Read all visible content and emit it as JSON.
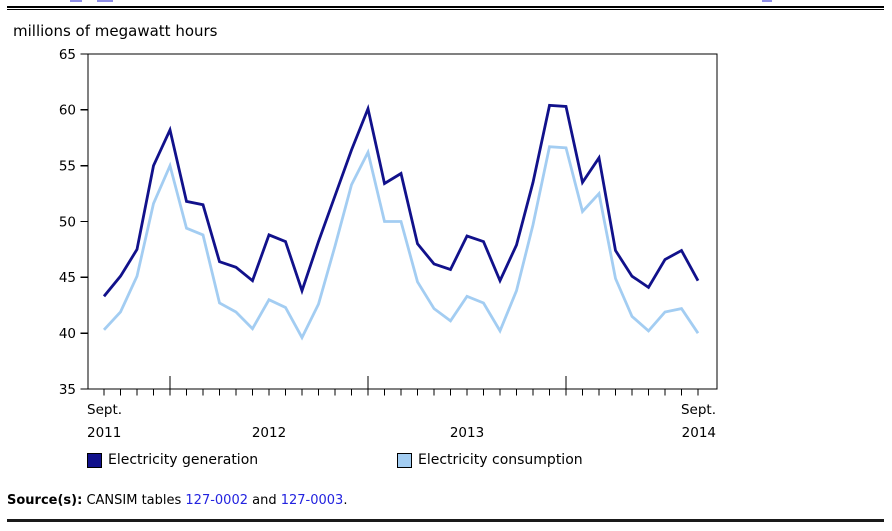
{
  "header": {
    "unit_label": "millions of megawatt hours"
  },
  "chart_data": {
    "type": "line",
    "title": "millions of megawatt hours",
    "ylabel": "millions of megawatt hours",
    "ylim": [
      35,
      65
    ],
    "yticks": [
      35,
      40,
      45,
      50,
      55,
      60,
      65
    ],
    "grid": false,
    "legend_position": "bottom",
    "x_months": [
      "2011-09",
      "2011-10",
      "2011-11",
      "2011-12",
      "2012-01",
      "2012-02",
      "2012-03",
      "2012-04",
      "2012-05",
      "2012-06",
      "2012-07",
      "2012-08",
      "2012-09",
      "2012-10",
      "2012-11",
      "2012-12",
      "2013-01",
      "2013-02",
      "2013-03",
      "2013-04",
      "2013-05",
      "2013-06",
      "2013-07",
      "2013-08",
      "2013-09",
      "2013-10",
      "2013-11",
      "2013-12",
      "2014-01",
      "2014-02",
      "2014-03",
      "2014-04",
      "2014-05",
      "2014-06",
      "2014-07",
      "2014-08",
      "2014-09"
    ],
    "series": [
      {
        "name": "Electricity generation",
        "color": "#11118B",
        "values": [
          43.3,
          45.1,
          47.5,
          55.0,
          58.2,
          51.8,
          51.5,
          46.4,
          45.9,
          44.7,
          48.8,
          48.2,
          43.8,
          48.2,
          52.3,
          56.4,
          60.1,
          53.4,
          54.3,
          48.0,
          46.2,
          45.7,
          48.7,
          48.2,
          44.7,
          47.9,
          53.5,
          60.4,
          60.3,
          53.5,
          55.7,
          47.4,
          45.1,
          44.1,
          46.6,
          47.4,
          44.7
        ]
      },
      {
        "name": "Electricity consumption",
        "color": "#A3CDF2",
        "values": [
          40.3,
          41.9,
          45.1,
          51.6,
          55.0,
          49.4,
          48.8,
          42.7,
          41.9,
          40.4,
          43.0,
          42.3,
          39.6,
          42.6,
          47.8,
          53.3,
          56.2,
          50.0,
          50.0,
          44.6,
          42.2,
          41.1,
          43.3,
          42.7,
          40.2,
          43.8,
          49.7,
          56.7,
          56.6,
          50.9,
          52.5,
          44.9,
          41.5,
          40.2,
          41.9,
          42.2,
          40.0
        ]
      }
    ],
    "x_axis_labels": [
      {
        "lines": [
          "Sept.",
          "2011"
        ],
        "month_index": 0,
        "align": "start"
      },
      {
        "lines": [
          "2012"
        ],
        "month_index": 10,
        "align": "middle"
      },
      {
        "lines": [
          "2013"
        ],
        "month_index": 22,
        "align": "middle"
      },
      {
        "lines": [
          "Sept.",
          "2014"
        ],
        "month_index": 36,
        "align": "end"
      }
    ]
  },
  "source": {
    "label": "Source(s):",
    "pre": " CANSIM tables ",
    "links": [
      "127-0002",
      "127-0003"
    ],
    "mid": " and ",
    "end": ".",
    "link_color": "#2323DF"
  }
}
